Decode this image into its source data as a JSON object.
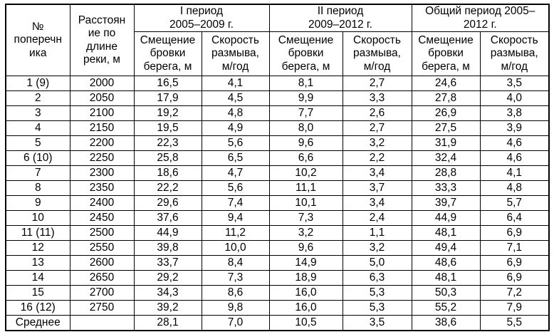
{
  "table": {
    "header": {
      "cross_section": "№\nпоперечн\nика",
      "distance": "Расстоян\nие по\nдлине\nреки, м",
      "period1": "I период\n2005–2009 г.",
      "period2": "II период\n2009–2012 г.",
      "period_total": "Общий период 2005–\n2012 г."
    },
    "subheader": {
      "displacement": "Смещение\nбровки\nберега, м",
      "rate": "Скорость\nразмыва,\nм/год"
    },
    "rows": [
      [
        "1 (9)",
        "2000",
        "16,5",
        "4,1",
        "8,1",
        "2,7",
        "24,6",
        "3,5"
      ],
      [
        "2",
        "2050",
        "17,9",
        "4,5",
        "9,9",
        "3,3",
        "27,8",
        "4,0"
      ],
      [
        "3",
        "2100",
        "19,2",
        "4,8",
        "7,7",
        "2,6",
        "26,9",
        "3,8"
      ],
      [
        "4",
        "2150",
        "19,5",
        "4,9",
        "8,0",
        "2,7",
        "27,5",
        "3,9"
      ],
      [
        "5",
        "2200",
        "22,3",
        "5,6",
        "9,6",
        "3,2",
        "31,9",
        "4,6"
      ],
      [
        "6 (10)",
        "2250",
        "25,8",
        "6,5",
        "6,6",
        "2,2",
        "32,4",
        "4,6"
      ],
      [
        "7",
        "2300",
        "18,6",
        "4,7",
        "10,2",
        "3,4",
        "28,8",
        "4,1"
      ],
      [
        "8",
        "2350",
        "22,2",
        "5,6",
        "11,1",
        "3,7",
        "33,3",
        "4,8"
      ],
      [
        "9",
        "2400",
        "29,6",
        "7,4",
        "10,1",
        "3,4",
        "39,7",
        "5,7"
      ],
      [
        "10",
        "2450",
        "37,6",
        "9,4",
        "7,3",
        "2,4",
        "44,9",
        "6,4"
      ],
      [
        "11 (11)",
        "2500",
        "44,9",
        "11,2",
        "3,2",
        "1,1",
        "48,1",
        "6,9"
      ],
      [
        "12",
        "2550",
        "39,8",
        "10,0",
        "9,6",
        "3,2",
        "49,4",
        "7,1"
      ],
      [
        "13",
        "2600",
        "33,7",
        "8,4",
        "14,9",
        "5,0",
        "48,6",
        "6,9"
      ],
      [
        "14",
        "2650",
        "29,2",
        "7,3",
        "18,9",
        "6,3",
        "48,1",
        "6,9"
      ],
      [
        "15",
        "2700",
        "34,3",
        "8,6",
        "16,0",
        "5,3",
        "50,3",
        "7,2"
      ],
      [
        "16 (12)",
        "2750",
        "39,2",
        "9,8",
        "16,0",
        "5,3",
        "55,2",
        "7,9"
      ],
      [
        "Среднее",
        "",
        "28,1",
        "7,0",
        "10,5",
        "3,5",
        "38,6",
        "5,5"
      ]
    ],
    "colors": {
      "border": "#000000",
      "text": "#000000",
      "background": "#ffffff"
    }
  }
}
